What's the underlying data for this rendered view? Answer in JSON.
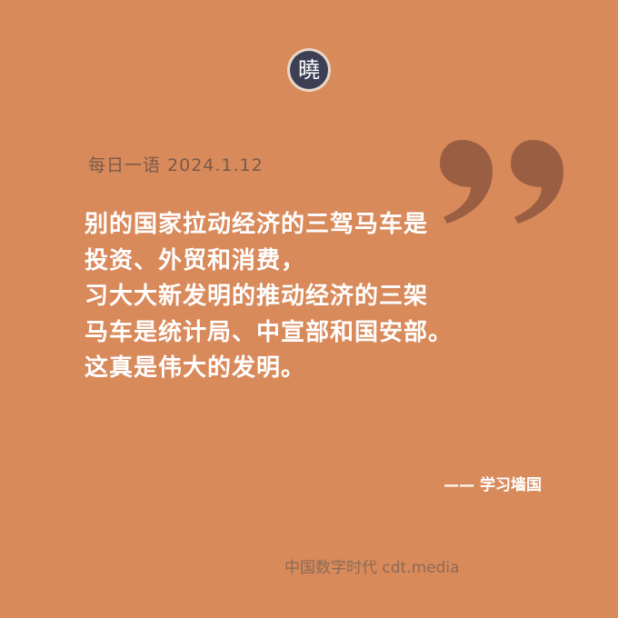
{
  "brand": {
    "logo_char": "曉",
    "colors": {
      "background": "#d98a5b",
      "logo_fill": "#3d3f55",
      "logo_ring": "#e9d7c8",
      "quote_mark": "#9a5e42",
      "text_main": "#ffffff",
      "text_muted": "#7a5a48"
    }
  },
  "header": {
    "date_line": "每日一语 2024.1.12"
  },
  "quote": {
    "lines": [
      "别的国家拉动经济的三驾马车是",
      "投资、外贸和消费，",
      "习大大新发明的推动经济的三架",
      "马车是统计局、中宣部和国安部。",
      "这真是伟大的发明。"
    ],
    "attribution": "—— 学习墙国"
  },
  "footer": {
    "source": "中国数字时代 cdt.media"
  }
}
